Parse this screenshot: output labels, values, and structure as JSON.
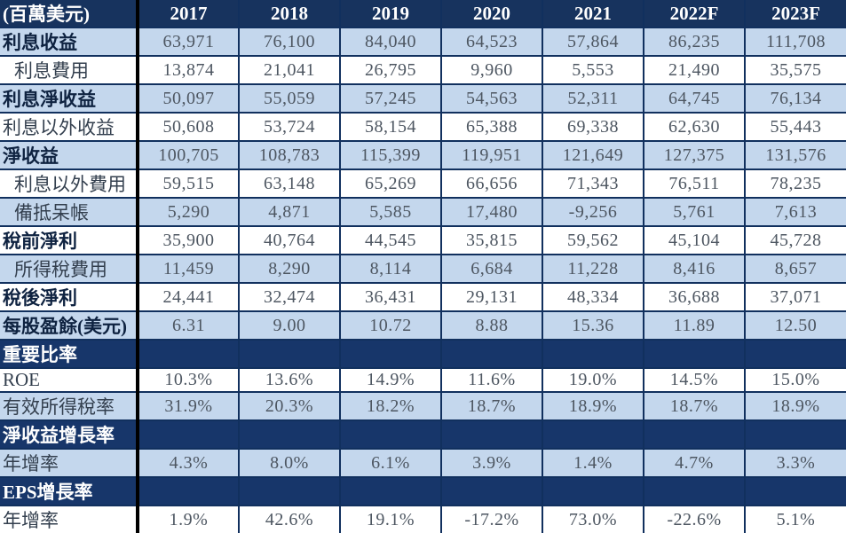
{
  "colors": {
    "header_navy": "#17335E",
    "section_navy": "#17366A",
    "row_lightblue": "#C4D7ED",
    "row_white": "#FFFFFF",
    "grid_border": "#11305E",
    "column_divider": "#000000",
    "number_text": "#4D5661",
    "header_text": "#FFFFFF"
  },
  "chart_data": {
    "type": "table",
    "unit_label": "(百萬美元)",
    "columns": [
      "2017",
      "2018",
      "2019",
      "2020",
      "2021",
      "2022F",
      "2023F"
    ],
    "rows": [
      {
        "label": "利息收益",
        "style": "bold",
        "bg": "blue",
        "values": [
          "63,971",
          "76,100",
          "84,040",
          "64,523",
          "57,864",
          "86,235",
          "111,708"
        ]
      },
      {
        "label": "利息費用",
        "style": "indent",
        "bg": "white",
        "values": [
          "13,874",
          "21,041",
          "26,795",
          "9,960",
          "5,553",
          "21,490",
          "35,575"
        ]
      },
      {
        "label": "利息淨收益",
        "style": "bold",
        "bg": "blue",
        "values": [
          "50,097",
          "55,059",
          "57,245",
          "54,563",
          "52,311",
          "64,745",
          "76,134"
        ]
      },
      {
        "label": "利息以外收益",
        "style": "plain",
        "bg": "white",
        "values": [
          "50,608",
          "53,724",
          "58,154",
          "65,388",
          "69,338",
          "62,630",
          "55,443"
        ]
      },
      {
        "label": "淨收益",
        "style": "bold",
        "bg": "blue",
        "values": [
          "100,705",
          "108,783",
          "115,399",
          "119,951",
          "121,649",
          "127,375",
          "131,576"
        ]
      },
      {
        "label": "利息以外費用",
        "style": "indent",
        "bg": "white",
        "values": [
          "59,515",
          "63,148",
          "65,269",
          "66,656",
          "71,343",
          "76,511",
          "78,235"
        ]
      },
      {
        "label": "備抵呆帳",
        "style": "indent",
        "bg": "blue",
        "values": [
          "5,290",
          "4,871",
          "5,585",
          "17,480",
          "-9,256",
          "5,761",
          "7,613"
        ]
      },
      {
        "label": "稅前淨利",
        "style": "bold",
        "bg": "white",
        "values": [
          "35,900",
          "40,764",
          "44,545",
          "35,815",
          "59,562",
          "45,104",
          "45,728"
        ]
      },
      {
        "label": "所得稅費用",
        "style": "indent",
        "bg": "blue",
        "values": [
          "11,459",
          "8,290",
          "8,114",
          "6,684",
          "11,228",
          "8,416",
          "8,657"
        ]
      },
      {
        "label": "稅後淨利",
        "style": "bold",
        "bg": "white",
        "values": [
          "24,441",
          "32,474",
          "36,431",
          "29,131",
          "48,334",
          "36,688",
          "37,071"
        ]
      },
      {
        "label": "每股盈餘(美元)",
        "style": "bold",
        "bg": "blue",
        "values": [
          "6.31",
          "9.00",
          "10.72",
          "8.88",
          "15.36",
          "11.89",
          "12.50"
        ]
      },
      {
        "label": "重要比率",
        "style": "section",
        "bg": "navy",
        "values": [
          "",
          "",
          "",
          "",
          "",
          "",
          ""
        ]
      },
      {
        "label": "ROE",
        "style": "plain",
        "bg": "white",
        "values": [
          "10.3%",
          "13.6%",
          "14.9%",
          "11.6%",
          "19.0%",
          "14.5%",
          "15.0%"
        ]
      },
      {
        "label": "有效所得稅率",
        "style": "plain",
        "bg": "blue",
        "values": [
          "31.9%",
          "20.3%",
          "18.2%",
          "18.7%",
          "18.9%",
          "18.7%",
          "18.9%"
        ]
      },
      {
        "label": "淨收益增長率",
        "style": "section",
        "bg": "navy",
        "values": [
          "",
          "",
          "",
          "",
          "",
          "",
          ""
        ]
      },
      {
        "label": "年增率",
        "style": "plain",
        "bg": "blue",
        "values": [
          "4.3%",
          "8.0%",
          "6.1%",
          "3.9%",
          "1.4%",
          "4.7%",
          "3.3%"
        ]
      },
      {
        "label": "EPS增長率",
        "style": "section",
        "bg": "navy",
        "values": [
          "",
          "",
          "",
          "",
          "",
          "",
          ""
        ]
      },
      {
        "label": "年增率",
        "style": "plain",
        "bg": "white",
        "values": [
          "1.9%",
          "42.6%",
          "19.1%",
          "-17.2%",
          "73.0%",
          "-22.6%",
          "5.1%"
        ]
      }
    ]
  }
}
